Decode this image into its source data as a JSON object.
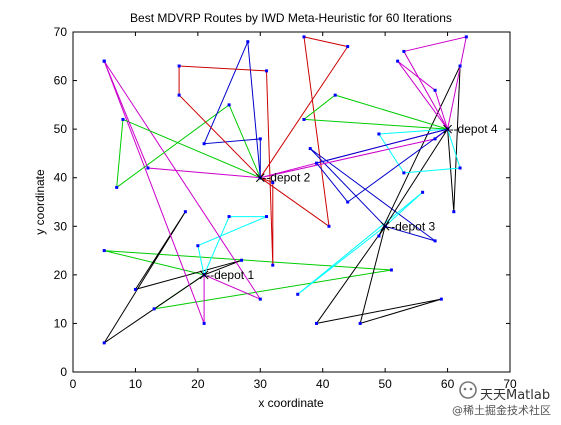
{
  "chart_data": {
    "type": "line",
    "title": "Best MDVRP Routes by IWD Meta-Heuristic for 60 Iterations",
    "xlabel": "x coordinate",
    "ylabel": "y coordinate",
    "xlim": [
      0,
      70
    ],
    "ylim": [
      0,
      70
    ],
    "xticks": [
      "0",
      "10",
      "20",
      "30",
      "40",
      "50",
      "60",
      "70"
    ],
    "yticks": [
      "0",
      "10",
      "20",
      "30",
      "40",
      "50",
      "60",
      "70"
    ],
    "grid": false,
    "depots": [
      {
        "label": "--depot 1",
        "x": 21,
        "y": 20
      },
      {
        "label": "--depot 2",
        "x": 30,
        "y": 40
      },
      {
        "label": "--depot 3",
        "x": 50,
        "y": 30
      },
      {
        "label": "--depot 4",
        "x": 60,
        "y": 50
      }
    ],
    "series": [
      {
        "color": "#00cc00",
        "points": [
          [
            21,
            20
          ],
          [
            5,
            25
          ],
          [
            51,
            21
          ],
          [
            13,
            13
          ],
          [
            21,
            20
          ]
        ]
      },
      {
        "color": "#000000",
        "points": [
          [
            21,
            20
          ],
          [
            5,
            6
          ],
          [
            18,
            33
          ],
          [
            10,
            17
          ],
          [
            27,
            23
          ],
          [
            21,
            20
          ]
        ]
      },
      {
        "color": "#00ffff",
        "points": [
          [
            21,
            20
          ],
          [
            20,
            26
          ],
          [
            31,
            32
          ],
          [
            25,
            32
          ],
          [
            21,
            20
          ]
        ]
      },
      {
        "color": "#cc00cc",
        "points": [
          [
            21,
            20
          ],
          [
            30,
            15
          ],
          [
            5,
            64
          ],
          [
            21,
            10
          ],
          [
            21,
            20
          ]
        ]
      },
      {
        "color": "#00cc00",
        "points": [
          [
            30,
            40
          ],
          [
            8,
            52
          ],
          [
            7,
            38
          ],
          [
            25,
            55
          ],
          [
            30,
            40
          ]
        ]
      },
      {
        "color": "#0000cc",
        "points": [
          [
            30,
            40
          ],
          [
            30,
            48
          ],
          [
            21,
            47
          ],
          [
            28,
            68
          ],
          [
            30,
            40
          ]
        ]
      },
      {
        "color": "#cc0000",
        "points": [
          [
            30,
            40
          ],
          [
            17,
            57
          ],
          [
            17,
            63
          ],
          [
            31,
            62
          ],
          [
            32,
            22
          ],
          [
            32,
            39
          ],
          [
            30,
            40
          ]
        ]
      },
      {
        "color": "#cc0000",
        "points": [
          [
            30,
            40
          ],
          [
            41,
            30
          ],
          [
            37,
            69
          ],
          [
            44,
            67
          ],
          [
            30,
            40
          ]
        ]
      },
      {
        "color": "#cc00cc",
        "points": [
          [
            30,
            40
          ],
          [
            12,
            42
          ],
          [
            5,
            64
          ]
        ]
      },
      {
        "color": "#0000cc",
        "points": [
          [
            50,
            30
          ],
          [
            38,
            46
          ],
          [
            58,
            27
          ],
          [
            50,
            30
          ]
        ]
      },
      {
        "color": "#00ffff",
        "points": [
          [
            50,
            30
          ],
          [
            36,
            16
          ],
          [
            56,
            37
          ],
          [
            50,
            30
          ]
        ]
      },
      {
        "color": "#000000",
        "points": [
          [
            50,
            30
          ],
          [
            39,
            10
          ],
          [
            59,
            15
          ],
          [
            46,
            10
          ],
          [
            50,
            30
          ]
        ]
      },
      {
        "color": "#000000",
        "points": [
          [
            60,
            50
          ],
          [
            49,
            28
          ],
          [
            62,
            63
          ],
          [
            61,
            33
          ],
          [
            60,
            50
          ]
        ]
      },
      {
        "color": "#00ffff",
        "points": [
          [
            60,
            50
          ],
          [
            49,
            49
          ],
          [
            53,
            41
          ],
          [
            62,
            42
          ],
          [
            60,
            50
          ]
        ]
      },
      {
        "color": "#cc00cc",
        "points": [
          [
            60,
            50
          ],
          [
            52,
            64
          ],
          [
            58,
            58
          ],
          [
            60,
            50
          ]
        ]
      },
      {
        "color": "#cc00cc",
        "points": [
          [
            60,
            50
          ],
          [
            63,
            69
          ],
          [
            53,
            66
          ],
          [
            60,
            50
          ]
        ]
      },
      {
        "color": "#00cc00",
        "points": [
          [
            60,
            50
          ],
          [
            37,
            52
          ],
          [
            42,
            57
          ],
          [
            60,
            50
          ]
        ]
      },
      {
        "color": "#cc00cc",
        "points": [
          [
            60,
            50
          ],
          [
            30,
            40
          ],
          [
            58,
            48
          ],
          [
            60,
            50
          ]
        ]
      },
      {
        "color": "#0000cc",
        "points": [
          [
            60,
            50
          ],
          [
            44,
            35
          ],
          [
            39,
            43
          ],
          [
            60,
            50
          ]
        ]
      }
    ]
  },
  "watermark": {
    "line1": "天天Matlab",
    "line2": "@稀土掘金技术社区"
  }
}
